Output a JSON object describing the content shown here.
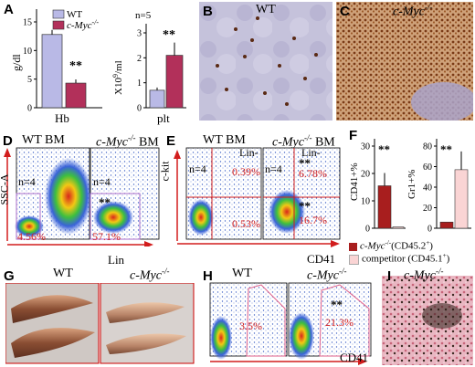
{
  "panels": {
    "A": {
      "label": "A",
      "hb_chart": {
        "ylabel": "g/dl",
        "yticks": [
          "0",
          "5",
          "10",
          "15"
        ],
        "xlabel": "Hb",
        "legend": [
          {
            "name": "WT",
            "color": "#b9b9e6"
          },
          {
            "name": "c-Myc",
            "sup": "-/-",
            "color": "#b2305a"
          }
        ],
        "sig": "**"
      },
      "plt_chart": {
        "ylabel": "X10",
        "ylabel_sup": "9",
        "ylabel_suffix": "/ml",
        "n_label": "n=5",
        "yticks": [
          "0",
          "1",
          "2",
          "3"
        ],
        "xlabel": "plt",
        "sig": "**"
      }
    },
    "B": {
      "label": "B",
      "title": "WT"
    },
    "C": {
      "label": "C",
      "title": "c-Myc",
      "title_sup": "-/-"
    },
    "D": {
      "label": "D",
      "title_left": "WT BM",
      "title_right": "c-Myc",
      "title_right_sup": "-/-",
      "title_right_suffix": " BM",
      "yaxis": "SSC-A",
      "xaxis": "Lin",
      "n_left": "n=4",
      "n_right": "n=4",
      "pct_left": "4.56%",
      "pct_right": "57.1%",
      "sig": "**"
    },
    "E": {
      "label": "E",
      "title_left": "WT BM",
      "title_right": "c-Myc",
      "title_right_sup": "-/-",
      "title_right_suffix": " BM",
      "yaxis": "c-kit",
      "xaxis": "CD41",
      "lin_left": "Lin-",
      "lin_right": "Lin-",
      "n_left": "n=4",
      "n_right": "n=4",
      "pct_left_top": "0.39%",
      "pct_left_bottom": "0.53%",
      "pct_right_top": "6.78%",
      "pct_right_bottom": "16.7%",
      "sig_top": "**",
      "sig_bottom": "**"
    },
    "F": {
      "label": "F",
      "cd41_ylabel": "CD41+%",
      "cd41_yticks": [
        "0",
        "10",
        "20",
        "30"
      ],
      "gr1_ylabel": "Gr1+%",
      "gr1_yticks": [
        "0",
        "20",
        "40",
        "60",
        "80"
      ],
      "sig_left": "**",
      "sig_right": "**",
      "legend": [
        {
          "name": "c-Myc",
          "sup": "-/-",
          "suffix": "(CD45.2",
          "sup2": "+",
          "end": ")",
          "color": "#a81e1e"
        },
        {
          "name": "competitor (CD45.1",
          "sup": "+",
          "suffix": ")",
          "color": "#fad4d4"
        }
      ]
    },
    "G": {
      "label": "G",
      "title_left": "WT",
      "title_right": "c-Myc",
      "title_right_sup": "-/-"
    },
    "H": {
      "label": "H",
      "title_left": "WT",
      "title_right": "c-Myc",
      "title_right_sup": "-/-",
      "pct_left": "3.5%",
      "pct_right": "21.3%",
      "sig": "**",
      "xaxis": "CD41"
    },
    "I": {
      "label": "I",
      "title": "c-Myc",
      "title_sup": "-/-"
    }
  },
  "chart_data": [
    {
      "type": "bar",
      "panel": "A-left",
      "categories": [
        "Hb"
      ],
      "series": [
        {
          "name": "WT",
          "values": [
            12.8
          ]
        },
        {
          "name": "c-Myc-/-",
          "values": [
            4.3
          ]
        }
      ],
      "ylabel": "g/dl",
      "ylim": [
        0,
        15
      ]
    },
    {
      "type": "bar",
      "panel": "A-right",
      "categories": [
        "plt"
      ],
      "series": [
        {
          "name": "WT",
          "values": [
            0.7
          ]
        },
        {
          "name": "c-Myc-/-",
          "values": [
            2.1
          ]
        }
      ],
      "ylabel": "X10^9/ml",
      "ylim": [
        0,
        3
      ]
    },
    {
      "type": "bar",
      "panel": "F-left",
      "categories": [
        "CD41+%"
      ],
      "series": [
        {
          "name": "c-Myc-/-(CD45.2+)",
          "values": [
            15.5
          ]
        },
        {
          "name": "competitor (CD45.1+)",
          "values": [
            0.5
          ]
        }
      ],
      "ylabel": "CD41+%",
      "ylim": [
        0,
        30
      ]
    },
    {
      "type": "bar",
      "panel": "F-right",
      "categories": [
        "Gr1+%"
      ],
      "series": [
        {
          "name": "c-Myc-/-(CD45.2+)",
          "values": [
            6
          ]
        },
        {
          "name": "competitor (CD45.1+)",
          "values": [
            57
          ]
        }
      ],
      "ylabel": "Gr1+%",
      "ylim": [
        0,
        80
      ]
    }
  ]
}
